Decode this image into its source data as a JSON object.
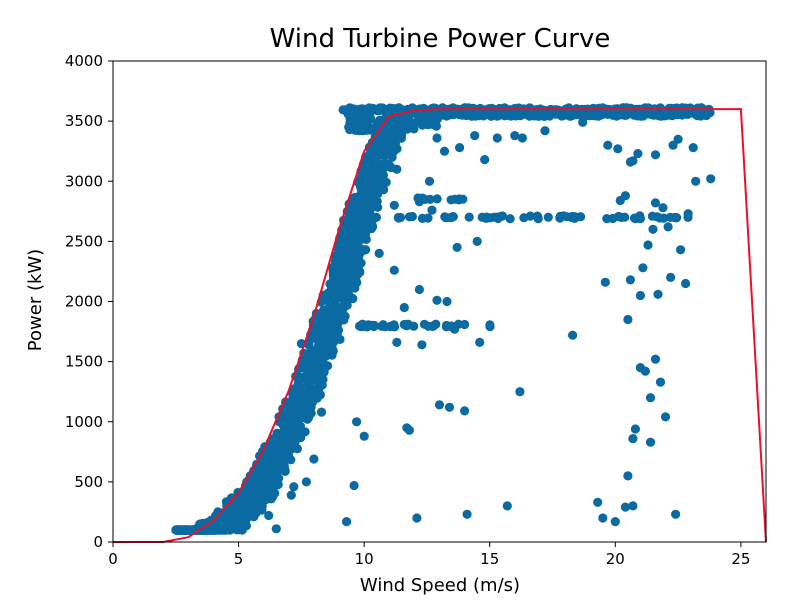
{
  "chart_data": {
    "type": "scatter",
    "title": "Wind Turbine Power Curve",
    "xlabel": "Wind Speed (m/s)",
    "ylabel": "Power (kW)",
    "xlim": [
      0,
      26
    ],
    "ylim": [
      0,
      4000
    ],
    "xticks": [
      0,
      5,
      10,
      15,
      20,
      25
    ],
    "yticks": [
      0,
      500,
      1000,
      1500,
      2000,
      2500,
      3000,
      3500,
      4000
    ],
    "grid": false,
    "colors": {
      "scatter": "#0a6aa1",
      "curve": "#e8102a"
    },
    "scatter_band": {
      "description_points": "dense measured points following the power curve",
      "center_curve_offset_ms": 0.7,
      "spread_ms": 0.8,
      "x_range": [
        2.5,
        23.8
      ],
      "plateau_kw": 3600
    },
    "scatter_outliers": [
      [
        9.3,
        170
      ],
      [
        9.7,
        1000
      ],
      [
        10.0,
        880
      ],
      [
        9.6,
        470
      ],
      [
        11.8,
        930
      ],
      [
        11.7,
        950
      ],
      [
        12.1,
        200
      ],
      [
        13.0,
        1140
      ],
      [
        13.4,
        1120
      ],
      [
        14.0,
        1090
      ],
      [
        14.1,
        230
      ],
      [
        15.7,
        300
      ],
      [
        16.2,
        1250
      ],
      [
        18.3,
        1720
      ],
      [
        19.3,
        330
      ],
      [
        19.5,
        200
      ],
      [
        20.0,
        170
      ],
      [
        20.4,
        290
      ],
      [
        20.7,
        300
      ],
      [
        20.5,
        550
      ],
      [
        20.7,
        860
      ],
      [
        20.8,
        940
      ],
      [
        21.0,
        1450
      ],
      [
        21.2,
        1420
      ],
      [
        21.4,
        830
      ],
      [
        21.4,
        1200
      ],
      [
        21.6,
        1520
      ],
      [
        21.8,
        1330
      ],
      [
        22.0,
        1040
      ],
      [
        22.4,
        230
      ],
      [
        22.2,
        2200
      ],
      [
        22.6,
        2430
      ],
      [
        22.8,
        2150
      ],
      [
        22.9,
        2730
      ],
      [
        23.1,
        3280
      ],
      [
        23.2,
        3000
      ],
      [
        23.8,
        3020
      ],
      [
        21.0,
        2050
      ],
      [
        21.1,
        2280
      ],
      [
        20.6,
        2180
      ],
      [
        20.5,
        1850
      ],
      [
        19.6,
        2160
      ],
      [
        21.7,
        2060
      ],
      [
        21.3,
        2470
      ],
      [
        21.5,
        2600
      ],
      [
        21.9,
        2780
      ],
      [
        21.6,
        2820
      ],
      [
        22.1,
        2620
      ],
      [
        20.2,
        2840
      ],
      [
        20.4,
        2880
      ],
      [
        19.9,
        2690
      ],
      [
        20.6,
        3160
      ],
      [
        20.1,
        3270
      ],
      [
        21.6,
        3220
      ],
      [
        22.3,
        3300
      ],
      [
        22.5,
        3350
      ],
      [
        19.7,
        3300
      ],
      [
        20.7,
        3170
      ],
      [
        20.9,
        3230
      ],
      [
        15.3,
        3360
      ],
      [
        16.0,
        3380
      ],
      [
        16.3,
        3360
      ],
      [
        17.2,
        3420
      ],
      [
        18.7,
        3490
      ],
      [
        19.9,
        3550
      ],
      [
        14.8,
        3180
      ],
      [
        14.4,
        3380
      ],
      [
        13.8,
        3280
      ],
      [
        13.2,
        3250
      ],
      [
        12.9,
        3360
      ],
      [
        12.2,
        2830
      ],
      [
        12.7,
        2760
      ],
      [
        13.5,
        2700
      ],
      [
        14.5,
        2500
      ],
      [
        13.7,
        2450
      ],
      [
        12.9,
        2010
      ],
      [
        13.3,
        2000
      ],
      [
        12.2,
        2100
      ],
      [
        11.6,
        1950
      ],
      [
        12.4,
        1810
      ],
      [
        13.6,
        1770
      ],
      [
        14.6,
        1660
      ],
      [
        12.3,
        1640
      ],
      [
        10.1,
        1790
      ],
      [
        11.3,
        1660
      ],
      [
        11.2,
        2260
      ],
      [
        10.6,
        2400
      ],
      [
        11.2,
        2800
      ],
      [
        12.6,
        3000
      ],
      [
        11.3,
        3100
      ],
      [
        5.6,
        420
      ],
      [
        5.1,
        360
      ],
      [
        6.2,
        220
      ],
      [
        6.5,
        110
      ],
      [
        7.2,
        460
      ],
      [
        7.7,
        500
      ],
      [
        7.1,
        390
      ],
      [
        8.0,
        690
      ],
      [
        7.2,
        820
      ],
      [
        8.3,
        1080
      ],
      [
        7.8,
        1140
      ],
      [
        8.1,
        1350
      ],
      [
        8.2,
        1500
      ],
      [
        7.5,
        1650
      ]
    ],
    "scatter_rows": [
      {
        "y": 1800,
        "x_from": 9.8,
        "x_to": 15.1,
        "count": 36
      },
      {
        "y": 2700,
        "x_from": 11.3,
        "x_to": 23.0,
        "count": 60
      },
      {
        "y": 2850,
        "x_from": 11.8,
        "x_to": 14.2,
        "count": 10
      },
      {
        "y": 3600,
        "x_from": 9.0,
        "x_to": 23.8,
        "count": 140
      }
    ],
    "series": [
      {
        "type": "line",
        "x": [
          0,
          1,
          2,
          3,
          4,
          5,
          6,
          7,
          8,
          9,
          10,
          11,
          12,
          13,
          14,
          15,
          16,
          17,
          18,
          19,
          20,
          21,
          22,
          23,
          24,
          25,
          26
        ],
        "y": [
          0,
          0,
          0,
          40,
          180,
          410,
          770,
          1260,
          1880,
          2600,
          3250,
          3540,
          3590,
          3600,
          3600,
          3600,
          3600,
          3600,
          3600,
          3600,
          3600,
          3600,
          3600,
          3600,
          3600,
          3600,
          0
        ]
      }
    ]
  }
}
